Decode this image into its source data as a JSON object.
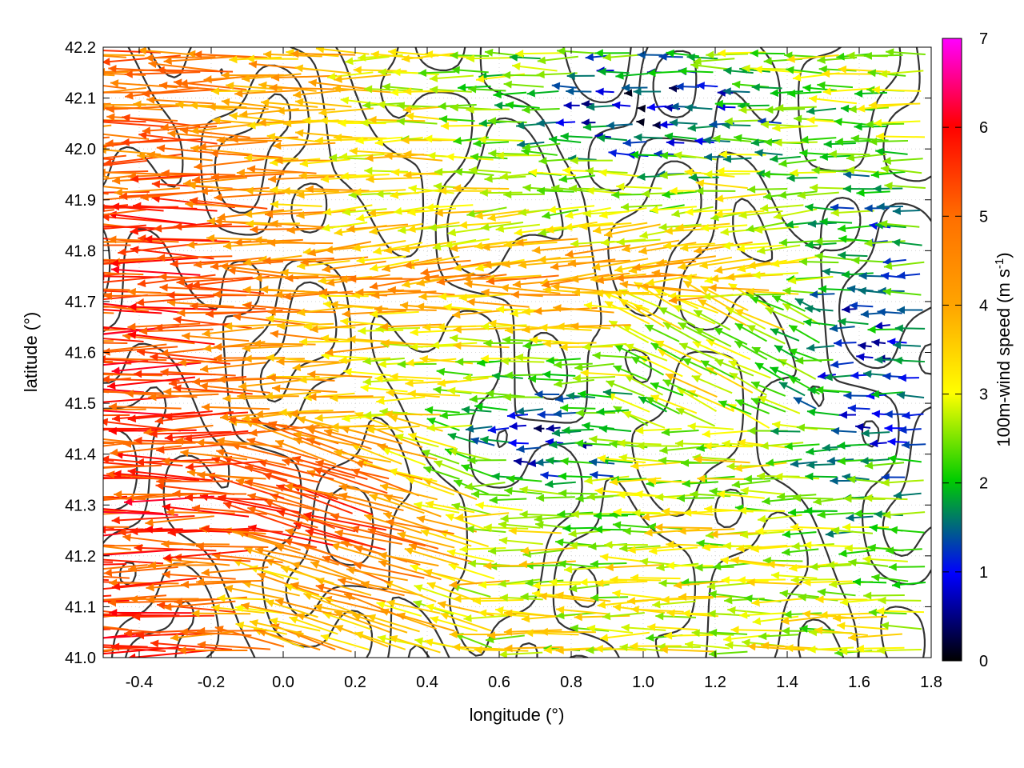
{
  "chart_data": {
    "type": "vector-field",
    "xlabel": "longitude (°)",
    "ylabel": "latitude (°)",
    "colorbar_label_main": "100m-wind speed (m s",
    "colorbar_label_sup": "-1",
    "colorbar_label_end": ")",
    "xlim": [
      -0.5,
      1.8
    ],
    "ylim": [
      41.0,
      42.2
    ],
    "xticks": [
      -0.4,
      -0.2,
      0.0,
      0.2,
      0.4,
      0.6,
      0.8,
      1.0,
      1.2,
      1.4,
      1.6,
      1.8
    ],
    "xtick_labels": [
      "-0.4",
      "-0.2",
      "0.0",
      "0.2",
      "0.4",
      "0.6",
      "0.8",
      "1.0",
      "1.2",
      "1.4",
      "1.6",
      "1.8"
    ],
    "yticks": [
      41.0,
      41.1,
      41.2,
      41.3,
      41.4,
      41.5,
      41.6,
      41.7,
      41.8,
      41.9,
      42.0,
      42.1,
      42.2
    ],
    "ytick_labels": [
      "41.0",
      "41.1",
      "41.2",
      "41.3",
      "41.4",
      "41.5",
      "41.6",
      "41.7",
      "41.8",
      "41.9",
      "42.0",
      "42.1",
      "42.2"
    ],
    "colorbar_range": [
      0,
      7
    ],
    "colorbar_ticks": [
      "0",
      "1",
      "2",
      "3",
      "4",
      "5",
      "6",
      "7"
    ],
    "colormap": [
      "#000000",
      "#0000ff",
      "#00cc00",
      "#ffff00",
      "#ffa500",
      "#ff0000",
      "#ff00ff"
    ],
    "contour_color": "#333333",
    "grid": true,
    "vectors_note": "Dense field of wind arrows mostly pointing west (right-to-left)"
  }
}
